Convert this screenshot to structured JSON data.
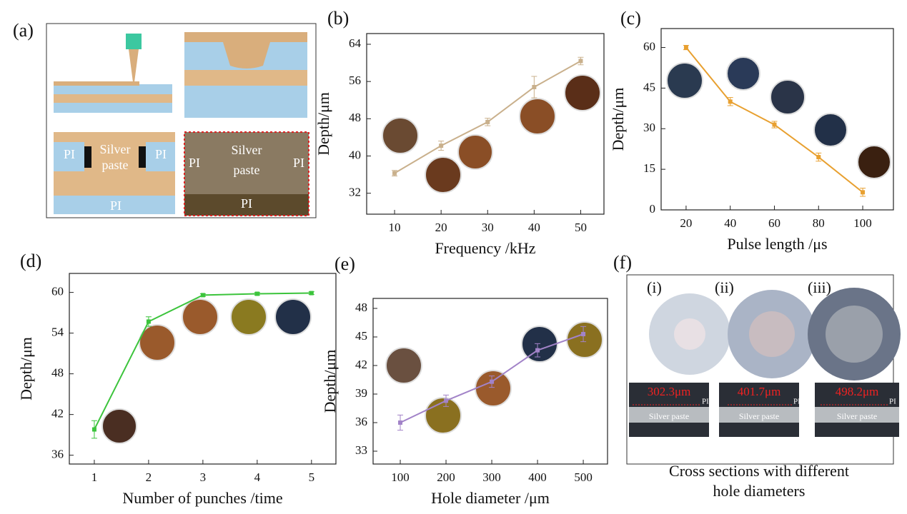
{
  "panel_labels": [
    "(a)",
    "(b)",
    "(c)",
    "(d)",
    "(e)",
    "(f)"
  ],
  "schematic": {
    "left": {
      "paste_lines": [
        "Silver",
        "paste"
      ],
      "pi": "PI"
    },
    "right": {
      "paste_lines": [
        "Silver",
        "paste"
      ],
      "pi": "PI"
    }
  },
  "cross_sections": {
    "items": [
      {
        "label": "(i)",
        "diameter": "302.3μm"
      },
      {
        "label": "(ii)",
        "diameter": "401.7μm"
      },
      {
        "label": "(iii)",
        "diameter": "498.2μm"
      }
    ],
    "pi": "PI",
    "paste": "Silver paste",
    "caption": [
      "Cross sections with different",
      "hole diameters"
    ]
  },
  "chart_data": [
    {
      "type": "line",
      "xlabel": "Frequency /kHz",
      "ylabel": "Depth/μm",
      "color": "#c9b08c",
      "x": [
        10,
        20,
        30,
        40,
        50
      ],
      "values": [
        36.3,
        42.2,
        47.3,
        54.8,
        60.4
      ],
      "errors": [
        0.6,
        1,
        0.8,
        2.3,
        0.8
      ],
      "xlim": [
        4,
        55
      ],
      "ylim": [
        27.5,
        66.3
      ],
      "xticks": [
        10,
        20,
        30,
        40,
        50
      ],
      "yticks": [
        32,
        40,
        48,
        56,
        64
      ]
    },
    {
      "type": "line",
      "xlabel": "Pulse length /μs",
      "ylabel": "Depth/μm",
      "color": "#e8a030",
      "x": [
        20,
        40,
        60,
        80,
        100
      ],
      "values": [
        60,
        40,
        31.5,
        19.5,
        6.5
      ],
      "errors": [
        0.8,
        1.5,
        1.2,
        1.5,
        1.5
      ],
      "xlim": [
        8.7,
        113.9
      ],
      "ylim": [
        0,
        67
      ],
      "xticks": [
        20,
        40,
        60,
        80,
        100
      ],
      "yticks": [
        0,
        15,
        30,
        45,
        60
      ]
    },
    {
      "type": "line",
      "xlabel": "Number of punches /time",
      "ylabel": "Depth/μm",
      "color": "#3cc43c",
      "x": [
        1,
        2,
        3,
        4,
        5
      ],
      "values": [
        39.8,
        55.7,
        59.6,
        59.8,
        59.9
      ],
      "errors": [
        1.3,
        0.7,
        0.2,
        0.2,
        0.2
      ],
      "xlim": [
        0.54,
        5.45
      ],
      "ylim": [
        34.7,
        62.8
      ],
      "xticks": [
        1,
        2,
        3,
        4,
        5
      ],
      "yticks": [
        36,
        42,
        48,
        54,
        60
      ]
    },
    {
      "type": "line",
      "xlabel": "Hole diameter /μm",
      "ylabel": "Depth/μm",
      "color": "#a283c8",
      "x": [
        100,
        200,
        300,
        400,
        500
      ],
      "values": [
        36,
        38.3,
        40.3,
        43.6,
        45.3
      ],
      "errors": [
        0.8,
        0.6,
        0.6,
        0.7,
        0.8
      ],
      "xlim": [
        40.6,
        553
      ],
      "ylim": [
        31.65,
        49.05
      ],
      "xticks": [
        100,
        200,
        300,
        400,
        500
      ],
      "yticks": [
        33,
        36,
        39,
        42,
        45,
        48
      ]
    }
  ]
}
